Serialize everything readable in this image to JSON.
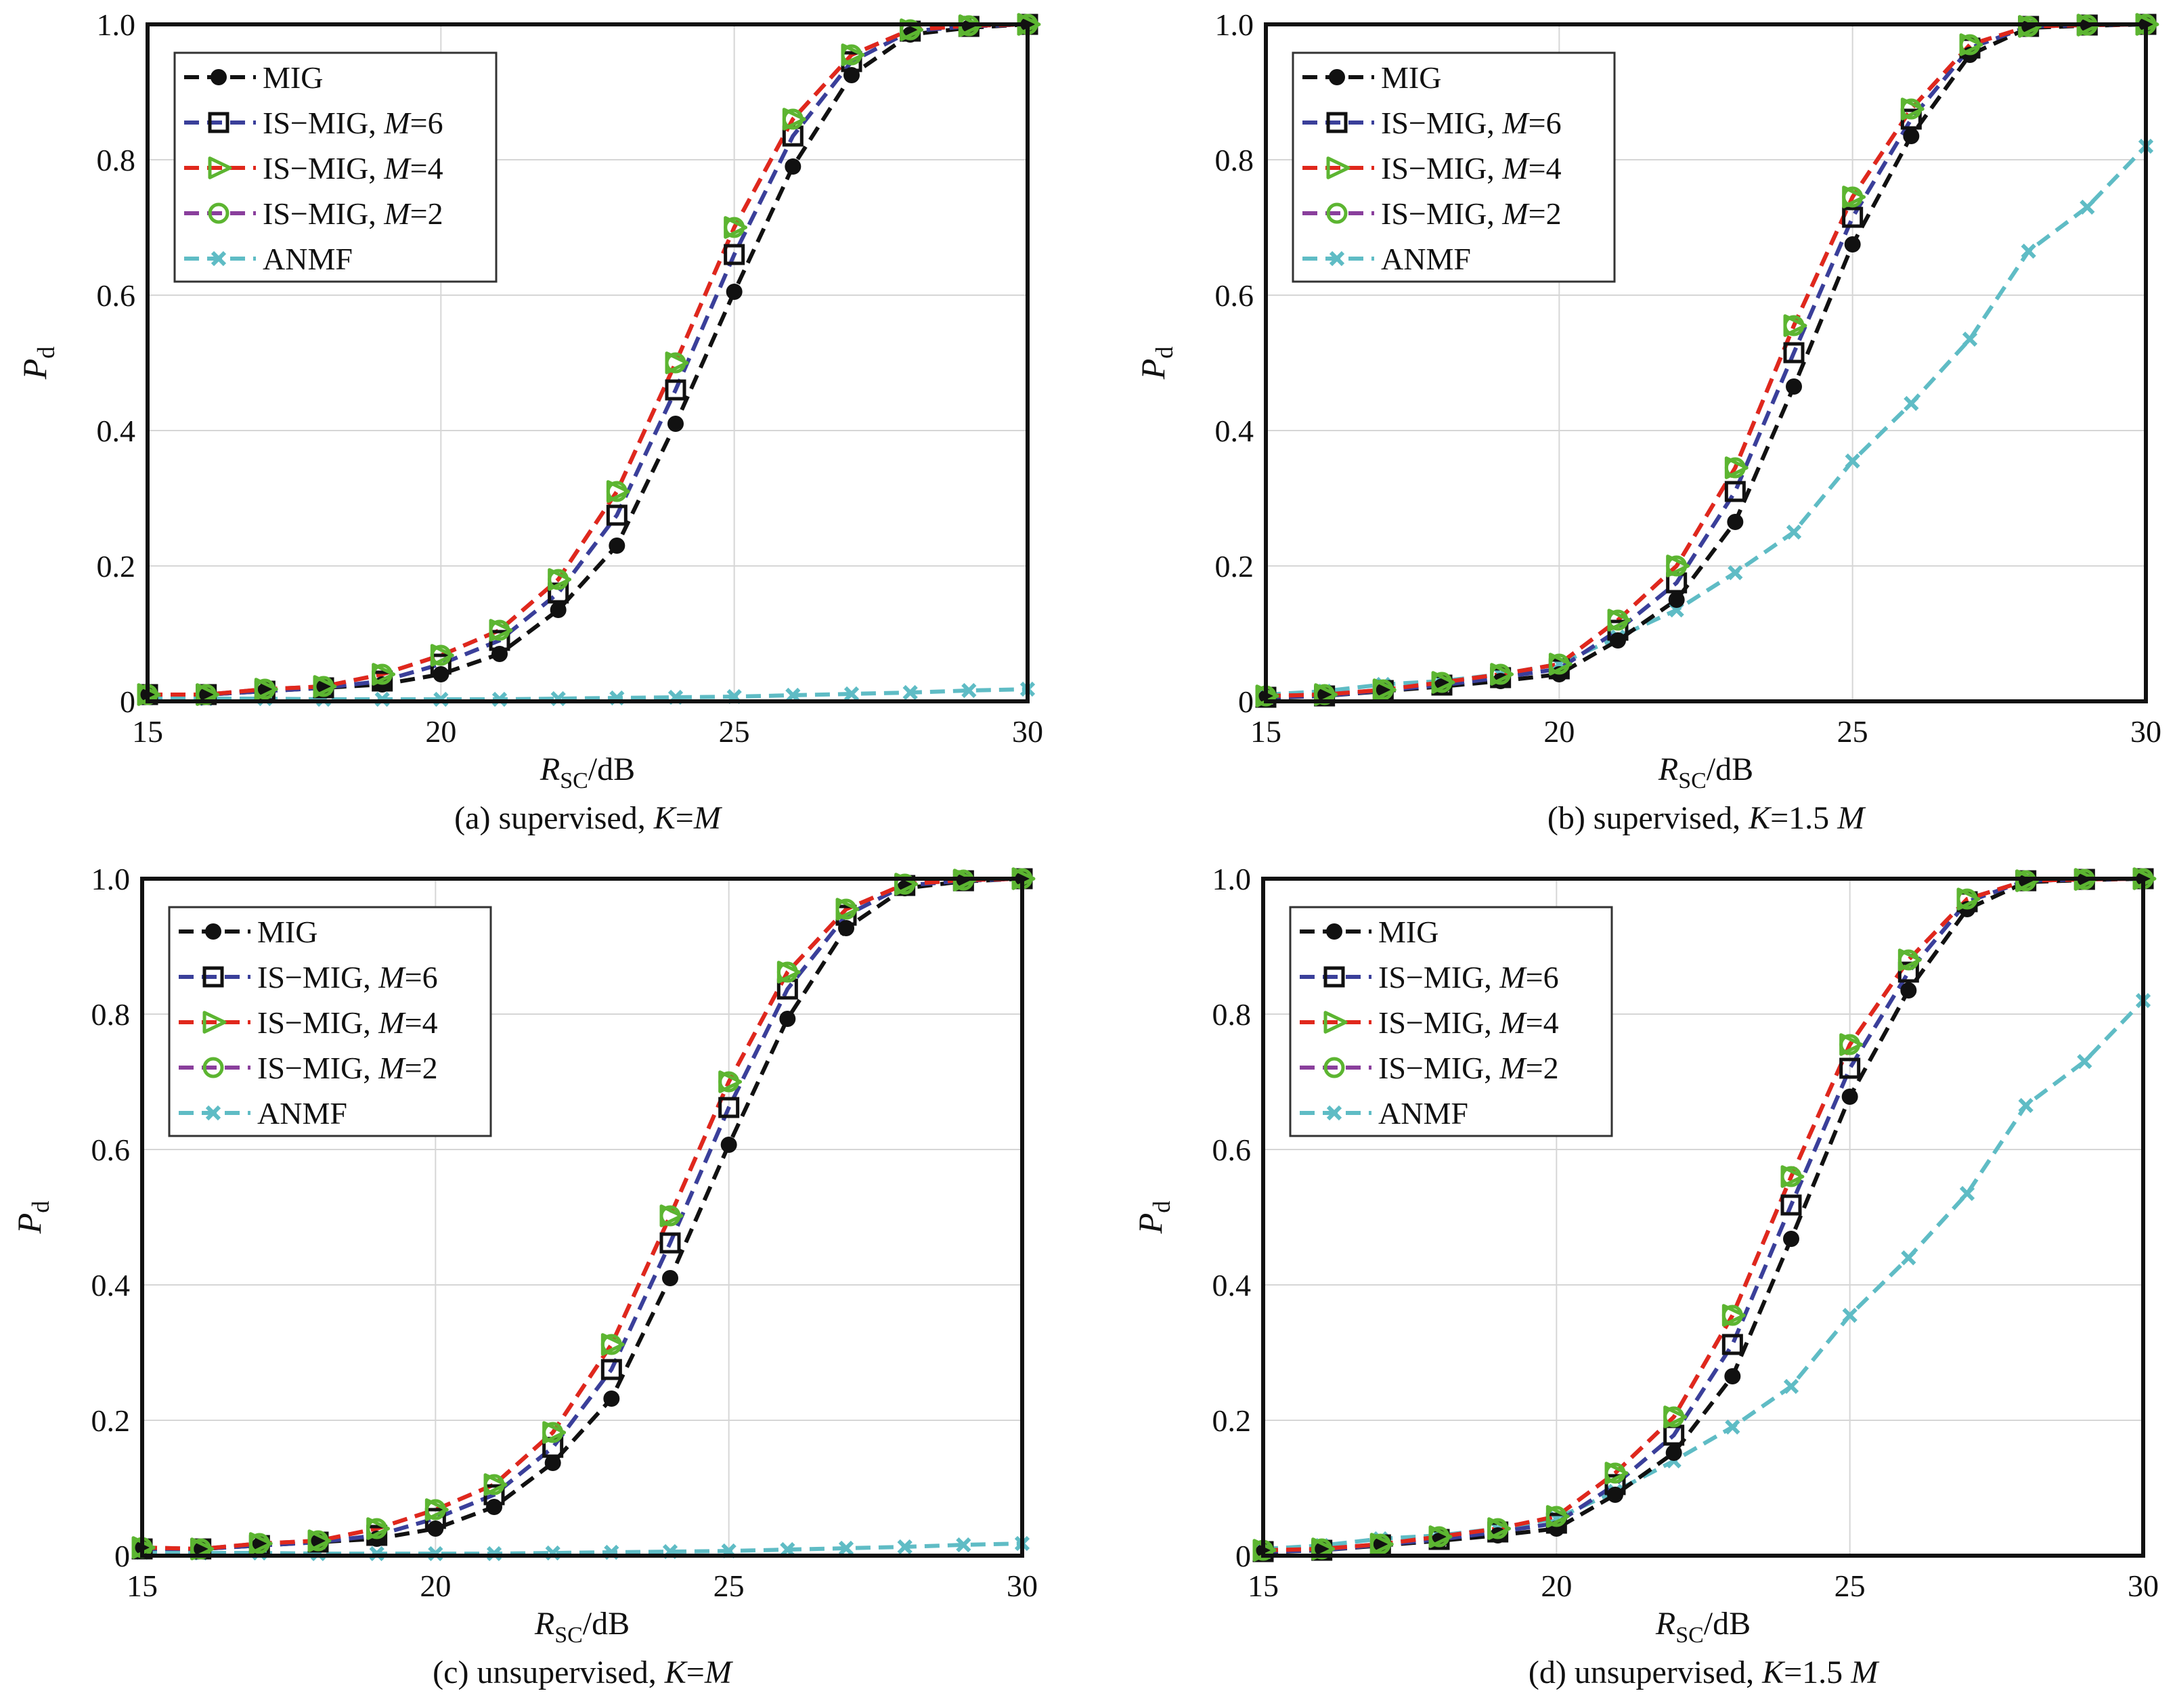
{
  "figure": {
    "legend_labels": [
      {
        "prefix": "MIG",
        "var": "",
        "suffix": ""
      },
      {
        "prefix": "IS−MIG, ",
        "var": "M",
        "suffix": "=6"
      },
      {
        "prefix": "IS−MIG, ",
        "var": "M",
        "suffix": "=4"
      },
      {
        "prefix": "IS−MIG, ",
        "var": "M",
        "suffix": "=2"
      },
      {
        "prefix": "ANMF",
        "var": "",
        "suffix": ""
      }
    ],
    "series_style": [
      {
        "line": "#111111",
        "marker": "filled-circle",
        "marker_color": "#111111"
      },
      {
        "line": "#3a3f9a",
        "marker": "square",
        "marker_color": "#111111"
      },
      {
        "line": "#e0281c",
        "marker": "triangle-right",
        "marker_color": "#5cb531"
      },
      {
        "line": "#8a3f9c",
        "marker": "circle",
        "marker_color": "#5cb531"
      },
      {
        "line": "#5fbcc5",
        "marker": "x",
        "marker_color": "#5fbcc5"
      }
    ]
  },
  "chart_data": [
    {
      "type": "line",
      "caption": {
        "prefix": "(a) supervised, ",
        "var": "K",
        "suffix": "=",
        "var2": "M"
      },
      "xlabel": {
        "main": "R",
        "sub": "SC",
        "rest": "/dB"
      },
      "ylabel": {
        "main": "P",
        "sub": "d"
      },
      "xlim": [
        15,
        30
      ],
      "ylim": [
        0,
        1
      ],
      "xticks": [
        "15",
        "20",
        "25",
        "30"
      ],
      "yticks": [
        "0",
        "0.2",
        "0.4",
        "0.6",
        "0.8",
        "1.0"
      ],
      "grid": true,
      "legend": "top-left",
      "x": [
        15,
        16,
        17,
        18,
        19,
        20,
        21,
        22,
        23,
        24,
        25,
        26,
        27,
        28,
        29,
        30
      ],
      "series": [
        {
          "name": "MIG",
          "values": [
            0.01,
            0.01,
            0.015,
            0.02,
            0.025,
            0.04,
            0.07,
            0.135,
            0.23,
            0.41,
            0.605,
            0.79,
            0.925,
            0.985,
            0.995,
            1.0
          ]
        },
        {
          "name": "IS-MIG, M=6",
          "values": [
            0.01,
            0.01,
            0.015,
            0.02,
            0.03,
            0.055,
            0.09,
            0.16,
            0.275,
            0.46,
            0.66,
            0.835,
            0.945,
            0.99,
            0.997,
            1.0
          ]
        },
        {
          "name": "IS-MIG, M=4",
          "values": [
            0.01,
            0.01,
            0.018,
            0.022,
            0.04,
            0.068,
            0.105,
            0.18,
            0.31,
            0.5,
            0.7,
            0.86,
            0.955,
            0.992,
            0.998,
            1.0
          ]
        },
        {
          "name": "IS-MIG, M=2",
          "values": [
            0.01,
            0.01,
            0.018,
            0.022,
            0.04,
            0.068,
            0.105,
            0.18,
            0.31,
            0.5,
            0.7,
            0.86,
            0.955,
            0.992,
            0.998,
            1.0
          ]
        },
        {
          "name": "ANMF",
          "values": [
            0.005,
            0.004,
            0.004,
            0.003,
            0.003,
            0.003,
            0.003,
            0.004,
            0.005,
            0.006,
            0.007,
            0.009,
            0.011,
            0.013,
            0.016,
            0.018
          ]
        }
      ]
    },
    {
      "type": "line",
      "caption": {
        "prefix": "(b) supervised, ",
        "var": "K",
        "suffix": "=1.5 ",
        "var2": "M"
      },
      "xlabel": {
        "main": "R",
        "sub": "SC",
        "rest": "/dB"
      },
      "ylabel": {
        "main": "P",
        "sub": "d"
      },
      "xlim": [
        15,
        30
      ],
      "ylim": [
        0,
        1
      ],
      "xticks": [
        "15",
        "20",
        "25",
        "30"
      ],
      "yticks": [
        "0",
        "0.2",
        "0.4",
        "0.6",
        "0.8",
        "1.0"
      ],
      "grid": true,
      "legend": "top-left",
      "x": [
        15,
        16,
        17,
        18,
        19,
        20,
        21,
        22,
        23,
        24,
        25,
        26,
        27,
        28,
        29,
        30
      ],
      "series": [
        {
          "name": "MIG",
          "values": [
            0.005,
            0.008,
            0.015,
            0.022,
            0.03,
            0.04,
            0.09,
            0.15,
            0.265,
            0.465,
            0.675,
            0.835,
            0.955,
            0.995,
            0.998,
            1.0
          ]
        },
        {
          "name": "IS-MIG, M=6",
          "values": [
            0.006,
            0.008,
            0.016,
            0.024,
            0.035,
            0.048,
            0.105,
            0.175,
            0.31,
            0.515,
            0.715,
            0.86,
            0.965,
            0.997,
            0.999,
            1.0
          ]
        },
        {
          "name": "IS-MIG, M=4",
          "values": [
            0.008,
            0.01,
            0.017,
            0.028,
            0.04,
            0.055,
            0.12,
            0.2,
            0.345,
            0.555,
            0.745,
            0.875,
            0.97,
            0.997,
            0.999,
            1.0
          ]
        },
        {
          "name": "IS-MIG, M=2",
          "values": [
            0.008,
            0.01,
            0.017,
            0.028,
            0.04,
            0.055,
            0.12,
            0.2,
            0.345,
            0.555,
            0.745,
            0.875,
            0.97,
            0.997,
            0.999,
            1.0
          ]
        },
        {
          "name": "ANMF",
          "values": [
            0.01,
            0.015,
            0.025,
            0.03,
            0.04,
            0.055,
            0.095,
            0.135,
            0.19,
            0.25,
            0.355,
            0.44,
            0.535,
            0.665,
            0.73,
            0.82
          ]
        }
      ]
    },
    {
      "type": "line",
      "caption": {
        "prefix": "(c) unsupervised, ",
        "var": "K",
        "suffix": "=",
        "var2": "M"
      },
      "xlabel": {
        "main": "R",
        "sub": "SC",
        "rest": "/dB"
      },
      "ylabel": {
        "main": "P",
        "sub": "d"
      },
      "xlim": [
        15,
        30
      ],
      "ylim": [
        0,
        1
      ],
      "xticks": [
        "15",
        "20",
        "25",
        "30"
      ],
      "yticks": [
        "0",
        "0.2",
        "0.4",
        "0.6",
        "0.8",
        "1.0"
      ],
      "grid": true,
      "legend": "top-left",
      "x": [
        15,
        16,
        17,
        18,
        19,
        20,
        21,
        22,
        23,
        24,
        25,
        26,
        27,
        28,
        29,
        30
      ],
      "series": [
        {
          "name": "MIG",
          "values": [
            0.01,
            0.01,
            0.015,
            0.02,
            0.025,
            0.04,
            0.072,
            0.137,
            0.232,
            0.41,
            0.607,
            0.793,
            0.927,
            0.986,
            0.996,
            1.0
          ]
        },
        {
          "name": "IS-MIG, M=6",
          "values": [
            0.01,
            0.01,
            0.015,
            0.02,
            0.03,
            0.055,
            0.09,
            0.16,
            0.275,
            0.462,
            0.662,
            0.837,
            0.946,
            0.99,
            0.997,
            1.0
          ]
        },
        {
          "name": "IS-MIG, M=4",
          "values": [
            0.012,
            0.01,
            0.018,
            0.022,
            0.04,
            0.068,
            0.105,
            0.182,
            0.312,
            0.502,
            0.7,
            0.862,
            0.955,
            0.992,
            0.998,
            1.0
          ]
        },
        {
          "name": "IS-MIG, M=2",
          "values": [
            0.012,
            0.01,
            0.018,
            0.022,
            0.04,
            0.068,
            0.105,
            0.182,
            0.312,
            0.502,
            0.7,
            0.862,
            0.955,
            0.992,
            0.998,
            1.0
          ]
        },
        {
          "name": "ANMF",
          "values": [
            0.005,
            0.004,
            0.004,
            0.003,
            0.003,
            0.003,
            0.003,
            0.004,
            0.005,
            0.006,
            0.007,
            0.009,
            0.011,
            0.013,
            0.016,
            0.018
          ]
        }
      ]
    },
    {
      "type": "line",
      "caption": {
        "prefix": "(d) unsupervised, ",
        "var": "K",
        "suffix": "=1.5 ",
        "var2": "M"
      },
      "xlabel": {
        "main": "R",
        "sub": "SC",
        "rest": "/dB"
      },
      "ylabel": {
        "main": "P",
        "sub": "d"
      },
      "xlim": [
        15,
        30
      ],
      "ylim": [
        0,
        1
      ],
      "xticks": [
        "15",
        "20",
        "25",
        "30"
      ],
      "yticks": [
        "0",
        "0.2",
        "0.4",
        "0.6",
        "0.8",
        "1.0"
      ],
      "grid": true,
      "legend": "top-left",
      "x": [
        15,
        16,
        17,
        18,
        19,
        20,
        21,
        22,
        23,
        24,
        25,
        26,
        27,
        28,
        29,
        30
      ],
      "series": [
        {
          "name": "MIG",
          "values": [
            0.005,
            0.008,
            0.015,
            0.022,
            0.03,
            0.04,
            0.09,
            0.152,
            0.265,
            0.468,
            0.678,
            0.835,
            0.955,
            0.995,
            0.998,
            1.0
          ]
        },
        {
          "name": "IS-MIG, M=6",
          "values": [
            0.006,
            0.008,
            0.016,
            0.024,
            0.035,
            0.048,
            0.105,
            0.178,
            0.312,
            0.518,
            0.72,
            0.862,
            0.966,
            0.997,
            0.999,
            1.0
          ]
        },
        {
          "name": "IS-MIG, M=4",
          "values": [
            0.008,
            0.01,
            0.017,
            0.028,
            0.04,
            0.058,
            0.122,
            0.205,
            0.355,
            0.56,
            0.755,
            0.88,
            0.97,
            0.997,
            0.999,
            1.0
          ]
        },
        {
          "name": "IS-MIG, M=2",
          "values": [
            0.008,
            0.01,
            0.017,
            0.028,
            0.04,
            0.058,
            0.122,
            0.205,
            0.355,
            0.56,
            0.755,
            0.88,
            0.97,
            0.997,
            0.999,
            1.0
          ]
        },
        {
          "name": "ANMF",
          "values": [
            0.01,
            0.015,
            0.025,
            0.03,
            0.04,
            0.055,
            0.095,
            0.14,
            0.19,
            0.25,
            0.355,
            0.44,
            0.535,
            0.665,
            0.73,
            0.82
          ]
        }
      ]
    }
  ]
}
